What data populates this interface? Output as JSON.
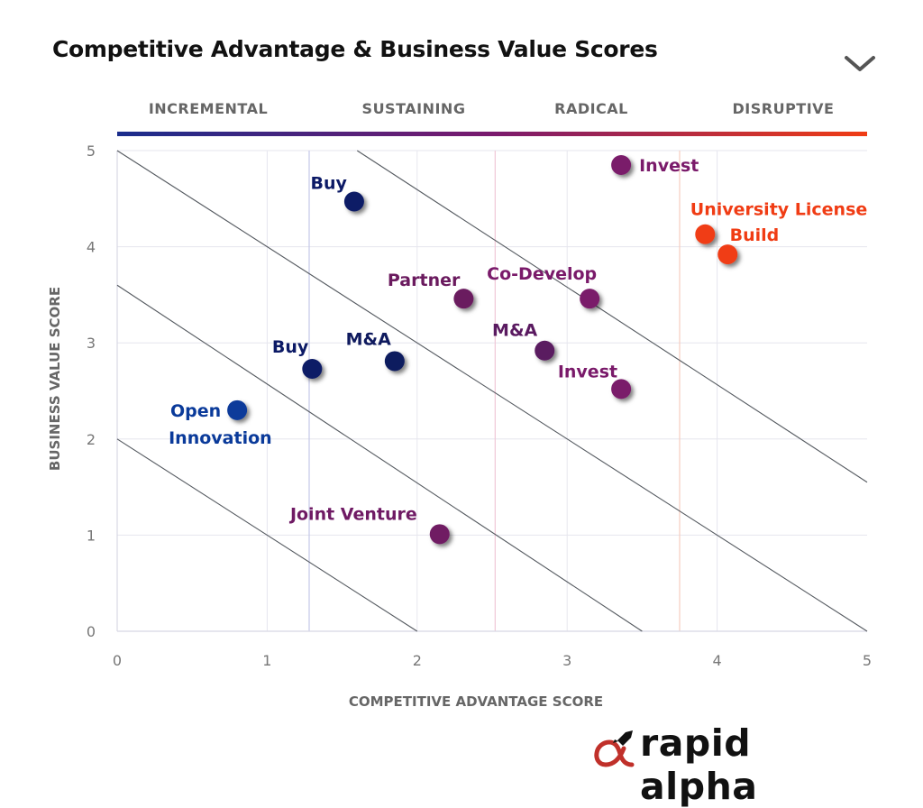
{
  "title": "Competitive Advantage & Business Value Scores",
  "icons": {
    "dropdown": "chevron-down-icon",
    "logo_mark": "rocket-alpha-icon"
  },
  "stages": [
    "INCREMENTAL",
    "SUSTAINING",
    "RADICAL",
    "DISRUPTIVE"
  ],
  "gradient_colors": [
    "#1a2d8c",
    "#7a1a6e",
    "#f03c14"
  ],
  "logo": {
    "text": "rapid alpha",
    "accent_color": "#c0302a"
  },
  "chart_data": {
    "type": "scatter",
    "title": "Competitive Advantage & Business Value Scores",
    "xlabel": "COMPETITIVE ADVANTAGE SCORE",
    "ylabel": "BUSINESS VALUE SCORE",
    "xlim": [
      0,
      5
    ],
    "ylim": [
      0,
      5
    ],
    "xticks": [
      "0",
      "1",
      "2",
      "3",
      "4",
      "5"
    ],
    "yticks": [
      "0",
      "1",
      "2",
      "3",
      "4",
      "5"
    ],
    "grid": true,
    "points": [
      {
        "label": "Open Innovation",
        "x": 0.8,
        "y": 2.3,
        "color": "#0a3a9a"
      },
      {
        "label": "Buy",
        "x": 1.3,
        "y": 2.73,
        "color": "#0c1a66"
      },
      {
        "label": "M&A",
        "x": 1.85,
        "y": 2.81,
        "color": "#0f1a5e"
      },
      {
        "label": "Buy",
        "x": 1.58,
        "y": 4.47,
        "color": "#0c1a66"
      },
      {
        "label": "Partner",
        "x": 2.31,
        "y": 3.46,
        "color": "#6a1a5e"
      },
      {
        "label": "Joint Venture",
        "x": 2.15,
        "y": 1.01,
        "color": "#6f1a64"
      },
      {
        "label": "M&A",
        "x": 2.85,
        "y": 2.92,
        "color": "#5a1a60"
      },
      {
        "label": "Co-Develop",
        "x": 3.15,
        "y": 3.46,
        "color": "#7a1a6a"
      },
      {
        "label": "Invest",
        "x": 3.36,
        "y": 2.52,
        "color": "#7a1a6a"
      },
      {
        "label": "Invest",
        "x": 3.36,
        "y": 4.85,
        "color": "#7a1a6a"
      },
      {
        "label": "University License",
        "x": 3.92,
        "y": 4.13,
        "color": "#f03c14"
      },
      {
        "label": "Build",
        "x": 4.07,
        "y": 3.92,
        "color": "#f03c14"
      }
    ],
    "diagonal_lines": [
      {
        "from": [
          0,
          2
        ],
        "to": [
          2,
          0
        ]
      },
      {
        "from": [
          0,
          3.6
        ],
        "to": [
          3.5,
          0
        ]
      },
      {
        "from": [
          0,
          5
        ],
        "to": [
          5,
          0
        ]
      },
      {
        "from": [
          1.6,
          5
        ],
        "to": [
          5,
          1.55
        ]
      }
    ],
    "stage_boundaries_x": [
      1.28,
      2.52,
      3.75
    ]
  }
}
